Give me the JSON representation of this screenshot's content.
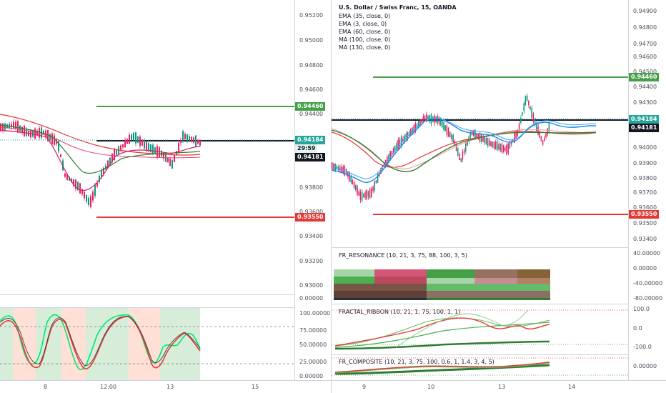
{
  "left_chart": {
    "price_axis": [
      "0.95200",
      "0.95000",
      "0.94800",
      "0.94600",
      "0.94400",
      "0.93800",
      "0.93600",
      "0.93400",
      "0.93200",
      "0.93000",
      "0.00000"
    ],
    "badges": {
      "target_high": "0.94460",
      "last_price": "0.94184",
      "countdown": "29:59",
      "bid": "0.94181",
      "target_low": "0.93550"
    },
    "osc_axis": [
      "100.00000",
      "75.00000",
      "50.00000",
      "25.00000",
      "0.00000"
    ],
    "time_axis": [
      "8",
      "12:00",
      "13",
      "15"
    ]
  },
  "right_chart": {
    "title": "U.S. Dollar / Swiss Franc, 15, OANDA",
    "studies": [
      "EMA (35, close, 0)",
      "EMA (3, close, 0)",
      "EMA (60, close, 0)",
      "MA (100, close, 0)",
      "MA (130, close, 0)"
    ],
    "price_axis": [
      "0.94900",
      "0.94800",
      "0.94700",
      "0.94600",
      "0.94500",
      "0.94400",
      "0.94300",
      "0.94000",
      "0.93900",
      "0.93800",
      "0.93700",
      "0.93600",
      "0.93500",
      "0.93400"
    ],
    "badges": {
      "target_high": "0.94460",
      "last_price": "0.94184",
      "bid": "0.94181",
      "target_low": "0.93550"
    },
    "resonance": {
      "title": "FR_RESONANCE (10, 21, 3, 75, 88, 100, 3, 5)",
      "axis": [
        "40.00000",
        "0.00000",
        "-40.00000",
        "-80.00000"
      ]
    },
    "ribbon": {
      "title": "FRACTAL_RIBBON (10, 21, 1, 75, 100, 1, 1)",
      "axis": [
        "100.0",
        "0.0",
        "-100.0"
      ]
    },
    "composite": {
      "title": "FR_COMPOSITE (10, 21, 3, 75, 100, 0.6, 1, 1.4, 3, 4, 5)",
      "axis": [
        "0.00000"
      ]
    },
    "time_axis": [
      "9",
      "10",
      "13",
      "14"
    ]
  },
  "colors": {
    "green_level": "#43a047",
    "red_level": "#e53935",
    "last_price": "#26a69a",
    "bid": "#131722",
    "candle_up": "#089981",
    "candle_down": "#e91e63"
  }
}
